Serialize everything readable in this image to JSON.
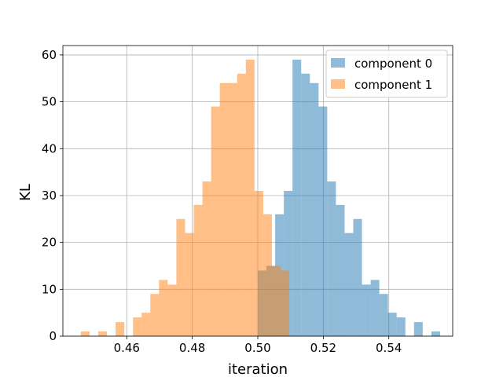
{
  "chart_data": {
    "type": "bar",
    "subtype": "histogram",
    "title": "",
    "xlabel": "iteration",
    "ylabel": "KL",
    "xlim": [
      0.4405,
      0.5595
    ],
    "ylim": [
      0,
      62
    ],
    "xticks": [
      "0.46",
      "0.48",
      "0.50",
      "0.52",
      "0.54"
    ],
    "yticks": [
      "0",
      "10",
      "20",
      "30",
      "40",
      "50",
      "60"
    ],
    "grid": true,
    "legend_position": "top-right",
    "bin_width": 0.00265,
    "series": [
      {
        "name": "component 0",
        "color": "#1f77b4",
        "alpha": 0.5,
        "bins": [
          {
            "x": 0.5,
            "y": 14
          },
          {
            "x": 0.50265,
            "y": 15
          },
          {
            "x": 0.5053,
            "y": 26
          },
          {
            "x": 0.50795,
            "y": 31
          },
          {
            "x": 0.5106,
            "y": 59
          },
          {
            "x": 0.51325,
            "y": 56
          },
          {
            "x": 0.5159,
            "y": 54
          },
          {
            "x": 0.51855,
            "y": 49
          },
          {
            "x": 0.5212,
            "y": 33
          },
          {
            "x": 0.52385,
            "y": 28
          },
          {
            "x": 0.5265,
            "y": 22
          },
          {
            "x": 0.52915,
            "y": 25
          },
          {
            "x": 0.5318,
            "y": 11
          },
          {
            "x": 0.53445,
            "y": 12
          },
          {
            "x": 0.5371,
            "y": 9
          },
          {
            "x": 0.53975,
            "y": 5
          },
          {
            "x": 0.5424,
            "y": 4
          },
          {
            "x": 0.54505,
            "y": 0
          },
          {
            "x": 0.5477,
            "y": 3
          },
          {
            "x": 0.55035,
            "y": 0
          },
          {
            "x": 0.553,
            "y": 1
          }
        ]
      },
      {
        "name": "component 1",
        "color": "#ff7f0e",
        "alpha": 0.5,
        "bins": [
          {
            "x": 0.446,
            "y": 1
          },
          {
            "x": 0.44865,
            "y": 0
          },
          {
            "x": 0.4513,
            "y": 1
          },
          {
            "x": 0.45395,
            "y": 0
          },
          {
            "x": 0.4566,
            "y": 3
          },
          {
            "x": 0.45925,
            "y": 0
          },
          {
            "x": 0.4619,
            "y": 4
          },
          {
            "x": 0.46455,
            "y": 5
          },
          {
            "x": 0.4672,
            "y": 9
          },
          {
            "x": 0.46985,
            "y": 12
          },
          {
            "x": 0.4725,
            "y": 11
          },
          {
            "x": 0.47515,
            "y": 25
          },
          {
            "x": 0.4778,
            "y": 22
          },
          {
            "x": 0.48045,
            "y": 28
          },
          {
            "x": 0.4831,
            "y": 33
          },
          {
            "x": 0.48575,
            "y": 49
          },
          {
            "x": 0.4884,
            "y": 54
          },
          {
            "x": 0.49105,
            "y": 54
          },
          {
            "x": 0.4937,
            "y": 56
          },
          {
            "x": 0.49635,
            "y": 59
          },
          {
            "x": 0.499,
            "y": 31
          },
          {
            "x": 0.50165,
            "y": 26
          },
          {
            "x": 0.5043,
            "y": 15
          },
          {
            "x": 0.50695,
            "y": 14
          }
        ]
      }
    ]
  }
}
